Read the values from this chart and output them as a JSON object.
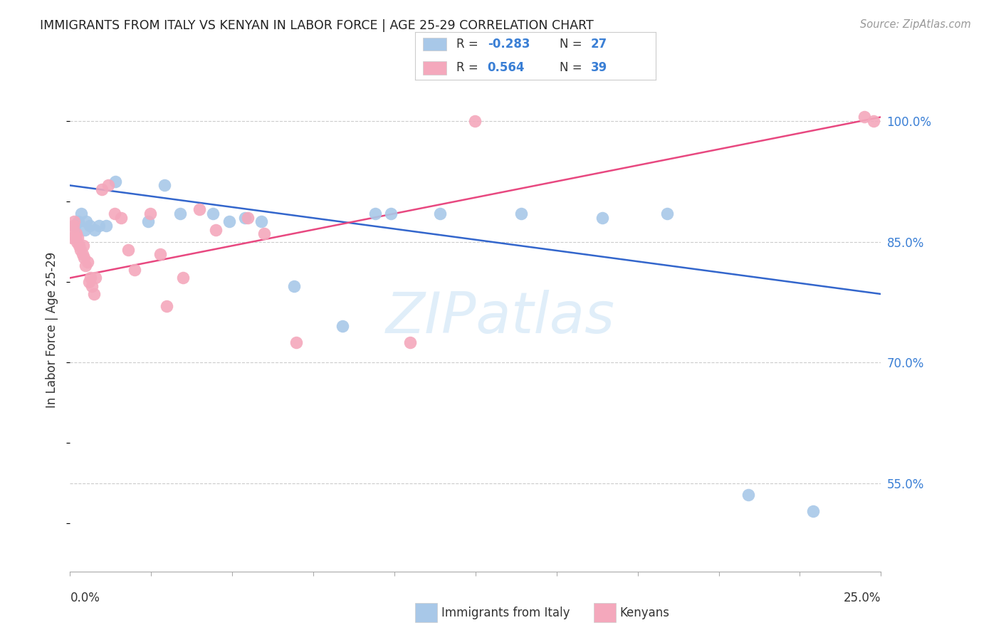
{
  "title": "IMMIGRANTS FROM ITALY VS KENYAN IN LABOR FORCE | AGE 25-29 CORRELATION CHART",
  "source": "Source: ZipAtlas.com",
  "ylabel": "In Labor Force | Age 25-29",
  "yticks": [
    55.0,
    70.0,
    85.0,
    100.0
  ],
  "ytick_labels": [
    "55.0%",
    "70.0%",
    "85.0%",
    "100.0%"
  ],
  "xmin": 0.0,
  "xmax": 25.0,
  "ymin": 44.0,
  "ymax": 104.0,
  "legend_italy_R": "-0.283",
  "legend_italy_N": "27",
  "legend_kenya_R": "0.564",
  "legend_kenya_N": "39",
  "italy_color": "#a8c8e8",
  "kenya_color": "#f4a8bc",
  "italy_line_color": "#3366cc",
  "kenya_line_color": "#e84880",
  "italy_scatter": [
    [
      0.15,
      87.0
    ],
    [
      0.25,
      87.5
    ],
    [
      0.35,
      88.5
    ],
    [
      0.45,
      86.5
    ],
    [
      0.5,
      87.5
    ],
    [
      0.6,
      87.0
    ],
    [
      0.75,
      86.5
    ],
    [
      0.9,
      87.0
    ],
    [
      1.1,
      87.0
    ],
    [
      1.4,
      92.5
    ],
    [
      2.4,
      87.5
    ],
    [
      2.9,
      92.0
    ],
    [
      3.4,
      88.5
    ],
    [
      4.4,
      88.5
    ],
    [
      4.9,
      87.5
    ],
    [
      5.4,
      88.0
    ],
    [
      5.9,
      87.5
    ],
    [
      6.9,
      79.5
    ],
    [
      8.4,
      74.5
    ],
    [
      9.4,
      88.5
    ],
    [
      9.9,
      88.5
    ],
    [
      11.4,
      88.5
    ],
    [
      13.9,
      88.5
    ],
    [
      16.4,
      88.0
    ],
    [
      18.4,
      88.5
    ],
    [
      20.9,
      53.5
    ],
    [
      22.9,
      51.5
    ]
  ],
  "kenya_scatter": [
    [
      0.05,
      85.5
    ],
    [
      0.08,
      86.5
    ],
    [
      0.1,
      87.0
    ],
    [
      0.13,
      87.5
    ],
    [
      0.16,
      85.5
    ],
    [
      0.18,
      86.0
    ],
    [
      0.2,
      85.0
    ],
    [
      0.23,
      85.5
    ],
    [
      0.27,
      84.5
    ],
    [
      0.33,
      84.0
    ],
    [
      0.38,
      83.5
    ],
    [
      0.4,
      84.5
    ],
    [
      0.43,
      83.0
    ],
    [
      0.48,
      82.0
    ],
    [
      0.53,
      82.5
    ],
    [
      0.58,
      80.0
    ],
    [
      0.63,
      80.5
    ],
    [
      0.68,
      79.5
    ],
    [
      0.73,
      78.5
    ],
    [
      0.78,
      80.5
    ],
    [
      0.98,
      91.5
    ],
    [
      1.18,
      92.0
    ],
    [
      1.38,
      88.5
    ],
    [
      1.58,
      88.0
    ],
    [
      1.78,
      84.0
    ],
    [
      1.98,
      81.5
    ],
    [
      2.48,
      88.5
    ],
    [
      2.78,
      83.5
    ],
    [
      2.98,
      77.0
    ],
    [
      3.48,
      80.5
    ],
    [
      3.98,
      89.0
    ],
    [
      4.48,
      86.5
    ],
    [
      5.48,
      88.0
    ],
    [
      5.98,
      86.0
    ],
    [
      6.98,
      72.5
    ],
    [
      10.48,
      72.5
    ],
    [
      12.48,
      100.0
    ],
    [
      24.48,
      100.5
    ],
    [
      24.78,
      100.0
    ]
  ],
  "italy_trend_x": [
    0.0,
    25.0
  ],
  "italy_trend_y": [
    92.0,
    78.5
  ],
  "kenya_trend_x": [
    0.0,
    25.0
  ],
  "kenya_trend_y": [
    80.5,
    100.5
  ]
}
